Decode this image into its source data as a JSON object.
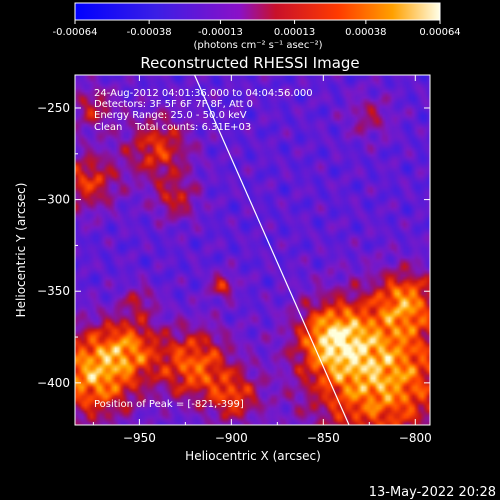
{
  "colorbar": {
    "ticks": [
      "-0.00064",
      "-0.00038",
      "-0.00013",
      "0.00013",
      "0.00038",
      "0.00064"
    ],
    "tick_values": [
      -0.00064,
      -0.00038,
      -0.00013,
      0.00013,
      0.00038,
      0.00064
    ],
    "units": "(photons cm⁻² s⁻¹ asec⁻²)",
    "range": [
      -0.00064,
      0.00064
    ]
  },
  "annotations": {
    "time_range": "24-Aug-2012 04:01:36.000 to 04:04:56.000",
    "detectors": "Detectors: 3F 5F 6F 7F 8F, Att 0",
    "energy": "Energy Range: 25.0 - 50.0 keV",
    "clean": "Clean    Total counts: 6.31E+03",
    "peak": "Position of Peak = [-821,-399]"
  },
  "footer": {
    "timestamp": "13-May-2022 20:28"
  },
  "colors": {
    "background": "#000000",
    "low": "#0000ff",
    "mid": "#7a1fa6",
    "high": "#ffe060",
    "limb": "#ffffff"
  },
  "chart_data": {
    "type": "heatmap",
    "title": "Reconstructed RHESSI Image",
    "xlabel": "Heliocentric X (arcsec)",
    "ylabel": "Heliocentric Y (arcsec)",
    "xlim": [
      -985,
      -792
    ],
    "ylim": [
      -423,
      -232
    ],
    "xticks": [
      -950,
      -900,
      -850,
      -800
    ],
    "yticks": [
      -250,
      -300,
      -350,
      -400
    ],
    "limb_line": [
      [
        -920,
        -232
      ],
      [
        -836,
        -423
      ]
    ],
    "sources": [
      {
        "x": -820,
        "y": -395,
        "r": 38,
        "amp": 1.0
      },
      {
        "x": -845,
        "y": -375,
        "r": 18,
        "amp": 0.75
      },
      {
        "x": -805,
        "y": -355,
        "r": 16,
        "amp": 0.65
      },
      {
        "x": -975,
        "y": -395,
        "r": 24,
        "amp": 0.95
      },
      {
        "x": -955,
        "y": -380,
        "r": 16,
        "amp": 0.55
      },
      {
        "x": -920,
        "y": -390,
        "r": 20,
        "amp": 0.75
      },
      {
        "x": -898,
        "y": -408,
        "r": 14,
        "amp": 0.55
      },
      {
        "x": -940,
        "y": -272,
        "r": 18,
        "amp": 0.6
      },
      {
        "x": -978,
        "y": -290,
        "r": 16,
        "amp": 0.6
      },
      {
        "x": -930,
        "y": -300,
        "r": 12,
        "amp": 0.45
      },
      {
        "x": -975,
        "y": -250,
        "r": 12,
        "amp": 0.45
      },
      {
        "x": -905,
        "y": -347,
        "r": 7,
        "amp": 0.55
      },
      {
        "x": -825,
        "y": -255,
        "r": 12,
        "amp": 0.35
      },
      {
        "x": -950,
        "y": -355,
        "r": 9,
        "amp": 0.35
      }
    ]
  }
}
